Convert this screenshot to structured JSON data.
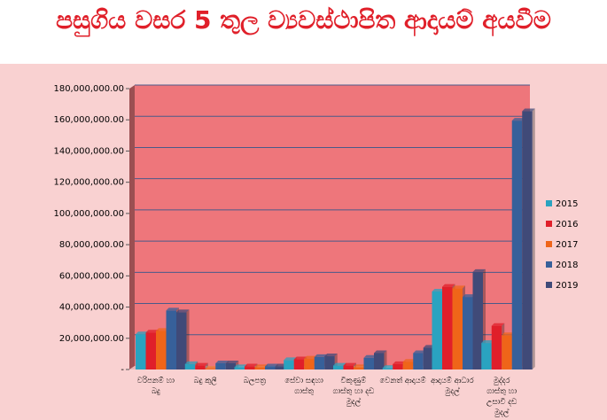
{
  "title": "පසුගිය වසර 5 තුල ව්‍යවස්ථාපිත ආදායම් අයවීම",
  "chart_data": {
    "type": "bar",
    "title": "පසුගිය වසර 5 තුල ව්‍යවස්ථාපිත ආදායම් අයවීම",
    "categories": [
      "වරිපනම් හා බදු",
      "බදු කුලී",
      "බලපත්‍ර",
      "සේවා සඳහා ගාස්තු",
      "විකුණුම් ගාස්තු හා දඩ මුදල්",
      "වෙනත් ආදායම්",
      "ආදායම් ආධාර මුදල්",
      "මුද්දර ගාස්තු හා උසාවි දඩ මුදල්"
    ],
    "series": [
      {
        "name": "2015",
        "color": "#2aa3c0",
        "values": [
          22600000,
          3500000,
          1500000,
          6000000,
          2500000,
          1000000,
          50000000,
          17000000
        ]
      },
      {
        "name": "2016",
        "color": "#e01f2a",
        "values": [
          23700000,
          2500000,
          2000000,
          6500000,
          2500000,
          3500000,
          53000000,
          28000000
        ]
      },
      {
        "name": "2017",
        "color": "#ef6519",
        "values": [
          24800000,
          500000,
          1500000,
          7000000,
          1500000,
          5000000,
          52000000,
          22000000
        ]
      },
      {
        "name": "2018",
        "color": "#37609a",
        "values": [
          37800000,
          4000000,
          2000000,
          8000000,
          7500000,
          10500000,
          46500000,
          159500000
        ]
      },
      {
        "name": "2019",
        "color": "#404a78",
        "values": [
          36700000,
          4000000,
          2000000,
          8500000,
          10500000,
          14000000,
          62500000,
          165500000
        ]
      }
    ],
    "yticks": [
      "-",
      "20,000,000.00",
      "40,000,000.00",
      "60,000,000.00",
      "80,000,000.00",
      "100,000,000.00",
      "120,000,000.00",
      "140,000,000.00",
      "160,000,000.00",
      "180,000,000.00"
    ],
    "ylim": [
      0,
      180000000
    ],
    "legend": "right",
    "grid": true
  }
}
